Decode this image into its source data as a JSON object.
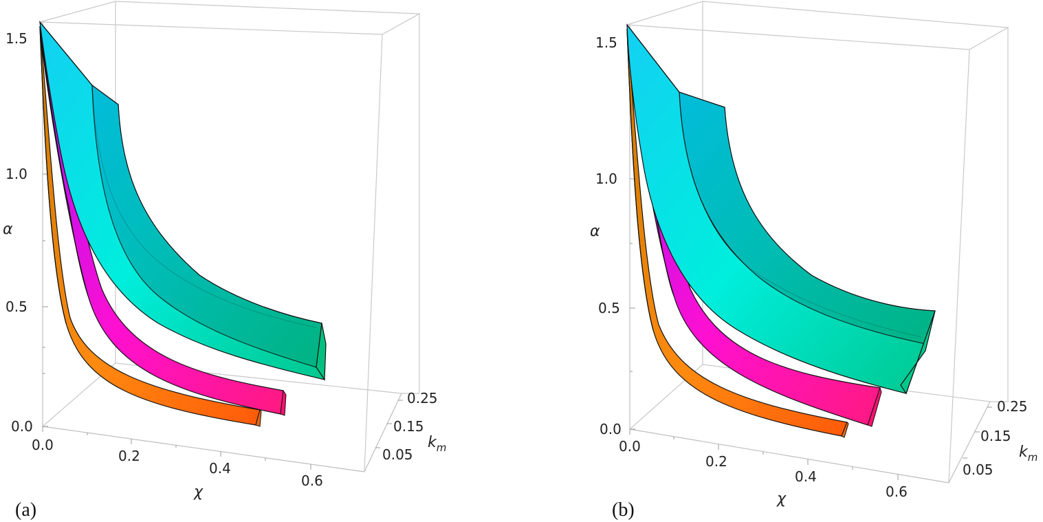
{
  "chart_data": [
    {
      "type": "3d-surface",
      "panel_label": "(a)",
      "xlabel": "χ",
      "ylabel": "k_m",
      "zlabel": "α",
      "x_ticks": [
        "0.0",
        "0.2",
        "0.4",
        "0.6"
      ],
      "y_ticks": [
        "0.05",
        "0.15",
        "0.25"
      ],
      "z_ticks": [
        "0.0",
        "0.5",
        "1.0",
        "1.5"
      ],
      "xlim": [
        0.0,
        0.65
      ],
      "ylim": [
        0.0,
        0.3
      ],
      "zlim": [
        0.0,
        1.6
      ],
      "series": [
        {
          "name": "orange band",
          "color_top": "#ff7a10",
          "color_side": "#d97a1a",
          "chi_end": 0.45,
          "alpha_start": 1.57,
          "alpha_end": 0.12
        },
        {
          "name": "magenta band",
          "color_top": "#ff1fa0",
          "color_side": "#b010e8",
          "chi_end": 0.5,
          "alpha_start": 1.57,
          "alpha_end": 0.2
        },
        {
          "name": "cyan band",
          "color_top": "#10d8ee",
          "color_side": "#00c890",
          "chi_end": 0.6,
          "alpha_start": 1.57,
          "alpha_end": 0.35
        }
      ]
    },
    {
      "type": "3d-surface",
      "panel_label": "(b)",
      "xlabel": "χ",
      "ylabel": "k_m",
      "zlabel": "α",
      "x_ticks": [
        "0.0",
        "0.2",
        "0.4",
        "0.6"
      ],
      "y_ticks": [
        "0.05",
        "0.15",
        "0.25"
      ],
      "z_ticks": [
        "0.0",
        "0.5",
        "1.0",
        "1.5"
      ],
      "xlim": [
        0.0,
        0.65
      ],
      "ylim": [
        0.0,
        0.3
      ],
      "zlim": [
        0.0,
        1.6
      ],
      "series": [
        {
          "name": "orange band",
          "color_top": "#ff7a10",
          "color_side": "#d97a1a",
          "chi_end": 0.46,
          "alpha_start": 1.57,
          "alpha_end": 0.1
        },
        {
          "name": "magenta band",
          "color_top": "#ff1fa0",
          "color_side": "#b010e8",
          "chi_end": 0.52,
          "alpha_start": 1.57,
          "alpha_end": 0.18
        },
        {
          "name": "cyan band",
          "color_top": "#10d8ee",
          "color_side": "#00c890",
          "chi_end": 0.63,
          "alpha_start": 1.57,
          "alpha_end": 0.42
        }
      ]
    }
  ]
}
